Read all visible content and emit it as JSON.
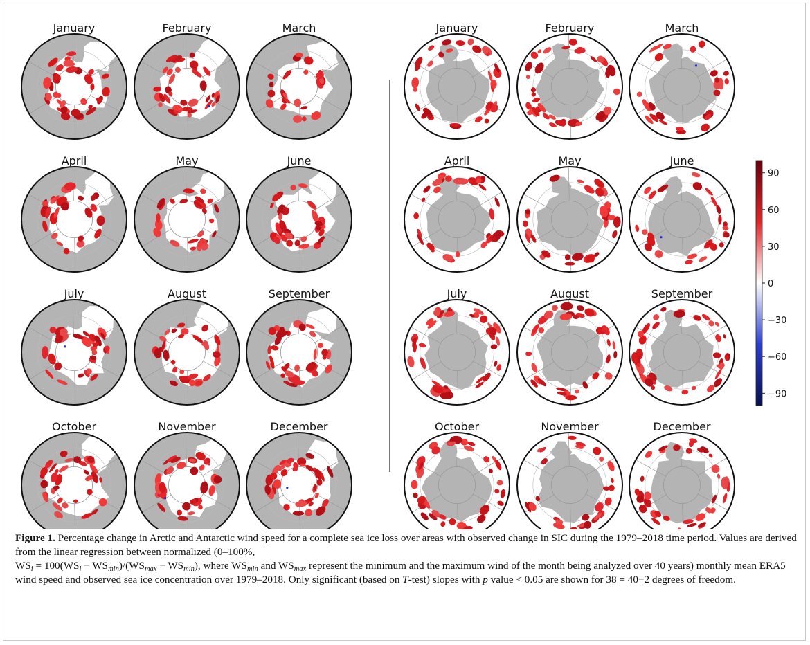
{
  "arctic_titles": [
    "January",
    "February",
    "March",
    "April",
    "May",
    "June",
    "July",
    "August",
    "September",
    "October",
    "November",
    "December"
  ],
  "antarctic_titles": [
    "January",
    "February",
    "March",
    "April",
    "May",
    "June",
    "July",
    "August",
    "September",
    "October",
    "November",
    "December"
  ],
  "colorbar": {
    "lim": [
      -100,
      100
    ],
    "ticks": [
      90,
      60,
      30,
      0,
      {
        "value": -30,
        "label": "−30"
      },
      {
        "value": -60,
        "label": "−60"
      },
      {
        "value": -90,
        "label": "−90"
      }
    ]
  },
  "caption": {
    "label": "Figure 1.",
    "parts": [
      "Percentage change in Arctic and Antarctic wind speed for a complete sea ice loss over areas with observed change in SIC during the 1979–2018 time period. Values are derived from the linear regression between normalized (0–100%,",
      "WS",
      "i",
      " = 100(WS",
      "i",
      " − WS",
      "min",
      ")/(WS",
      "max",
      " − WS",
      "min",
      "), where WS",
      "min",
      " and WS",
      "max",
      " represent the minimum and the maximum wind of the month being analyzed over 40 years) monthly mean ERA5 wind speed and observed sea ice concentration over 1979–2018. Only significant (based on ",
      "T",
      "-test) slopes with ",
      "p",
      " value < 0.05 are shown for 38 = 40−2 degrees of freedom."
    ]
  }
}
